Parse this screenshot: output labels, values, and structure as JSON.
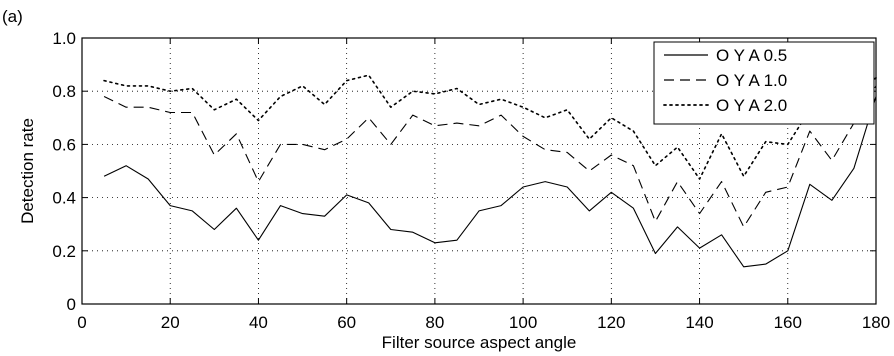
{
  "panel_label": "(a)",
  "chart_data": {
    "type": "line",
    "xlabel": "Filter source aspect angle",
    "ylabel": "Detection rate",
    "xlim": [
      0,
      180
    ],
    "ylim": [
      0,
      1.0
    ],
    "xticks": [
      0,
      20,
      40,
      60,
      80,
      100,
      120,
      140,
      160,
      180
    ],
    "yticks": [
      0,
      0.2,
      0.4,
      0.6,
      0.8,
      1.0
    ],
    "ytick_labels": [
      "0",
      "0.2",
      "0.4",
      "0.6",
      "0.8",
      "1.0"
    ],
    "grid": true,
    "legend_position": "top-right",
    "x": [
      5,
      10,
      15,
      20,
      25,
      30,
      35,
      40,
      45,
      50,
      55,
      60,
      65,
      70,
      75,
      80,
      85,
      90,
      95,
      100,
      105,
      110,
      115,
      120,
      125,
      130,
      135,
      140,
      145,
      150,
      155,
      160,
      165,
      170,
      175,
      180
    ],
    "series": [
      {
        "name": "O Y A 0.5",
        "style": "solid",
        "values": [
          0.48,
          0.52,
          0.47,
          0.37,
          0.35,
          0.28,
          0.36,
          0.24,
          0.37,
          0.34,
          0.33,
          0.41,
          0.38,
          0.28,
          0.27,
          0.23,
          0.24,
          0.35,
          0.37,
          0.44,
          0.46,
          0.44,
          0.35,
          0.42,
          0.36,
          0.19,
          0.29,
          0.21,
          0.26,
          0.14,
          0.15,
          0.2,
          0.45,
          0.39,
          0.51,
          0.78
        ]
      },
      {
        "name": "O Y A 1.0",
        "style": "dashed",
        "values": [
          0.78,
          0.74,
          0.74,
          0.72,
          0.72,
          0.56,
          0.64,
          0.46,
          0.6,
          0.6,
          0.58,
          0.62,
          0.7,
          0.6,
          0.71,
          0.67,
          0.68,
          0.67,
          0.71,
          0.63,
          0.58,
          0.57,
          0.5,
          0.56,
          0.52,
          0.31,
          0.46,
          0.34,
          0.46,
          0.29,
          0.42,
          0.44,
          0.65,
          0.54,
          0.68,
          0.82
        ]
      },
      {
        "name": "O Y A 2.0",
        "style": "dotted",
        "values": [
          0.84,
          0.82,
          0.82,
          0.8,
          0.81,
          0.73,
          0.77,
          0.69,
          0.78,
          0.82,
          0.75,
          0.84,
          0.86,
          0.74,
          0.8,
          0.79,
          0.81,
          0.75,
          0.77,
          0.74,
          0.7,
          0.73,
          0.62,
          0.7,
          0.65,
          0.52,
          0.59,
          0.47,
          0.64,
          0.48,
          0.61,
          0.6,
          0.73,
          0.77,
          0.79,
          0.85
        ]
      }
    ]
  }
}
